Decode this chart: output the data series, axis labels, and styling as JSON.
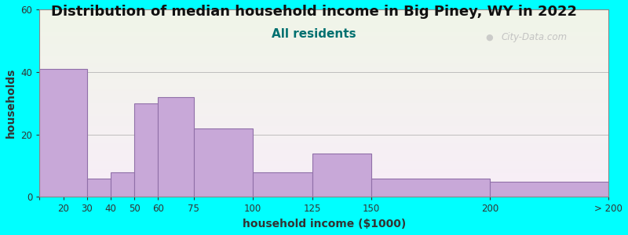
{
  "title": "Distribution of median household income in Big Piney, WY in 2022",
  "subtitle": "All residents",
  "xlabel": "household income ($1000)",
  "ylabel": "households",
  "tick_positions": [
    10,
    20,
    30,
    40,
    50,
    60,
    75,
    100,
    125,
    150,
    200,
    250
  ],
  "tick_labels": [
    "",
    "20",
    "30",
    "40",
    "50",
    "60",
    "75",
    "100",
    "125",
    "150",
    "200",
    "> 200"
  ],
  "bar_lefts": [
    10,
    30,
    40,
    50,
    60,
    75,
    100,
    125,
    150,
    200
  ],
  "bar_rights": [
    30,
    40,
    50,
    60,
    75,
    100,
    125,
    150,
    200,
    250
  ],
  "bar_heights": [
    41,
    6,
    8,
    30,
    32,
    22,
    8,
    14,
    6,
    5
  ],
  "bar_color": "#C8A8D8",
  "bar_edge_color": "#9070A8",
  "ylim": [
    0,
    60
  ],
  "yticks": [
    0,
    20,
    40,
    60
  ],
  "xlim": [
    10,
    250
  ],
  "background_color": "#00FFFF",
  "title_fontsize": 13,
  "subtitle_fontsize": 11,
  "subtitle_color": "#007070",
  "axis_label_fontsize": 10,
  "watermark_text": "City-Data.com",
  "watermark_color": "#BBBBBB"
}
